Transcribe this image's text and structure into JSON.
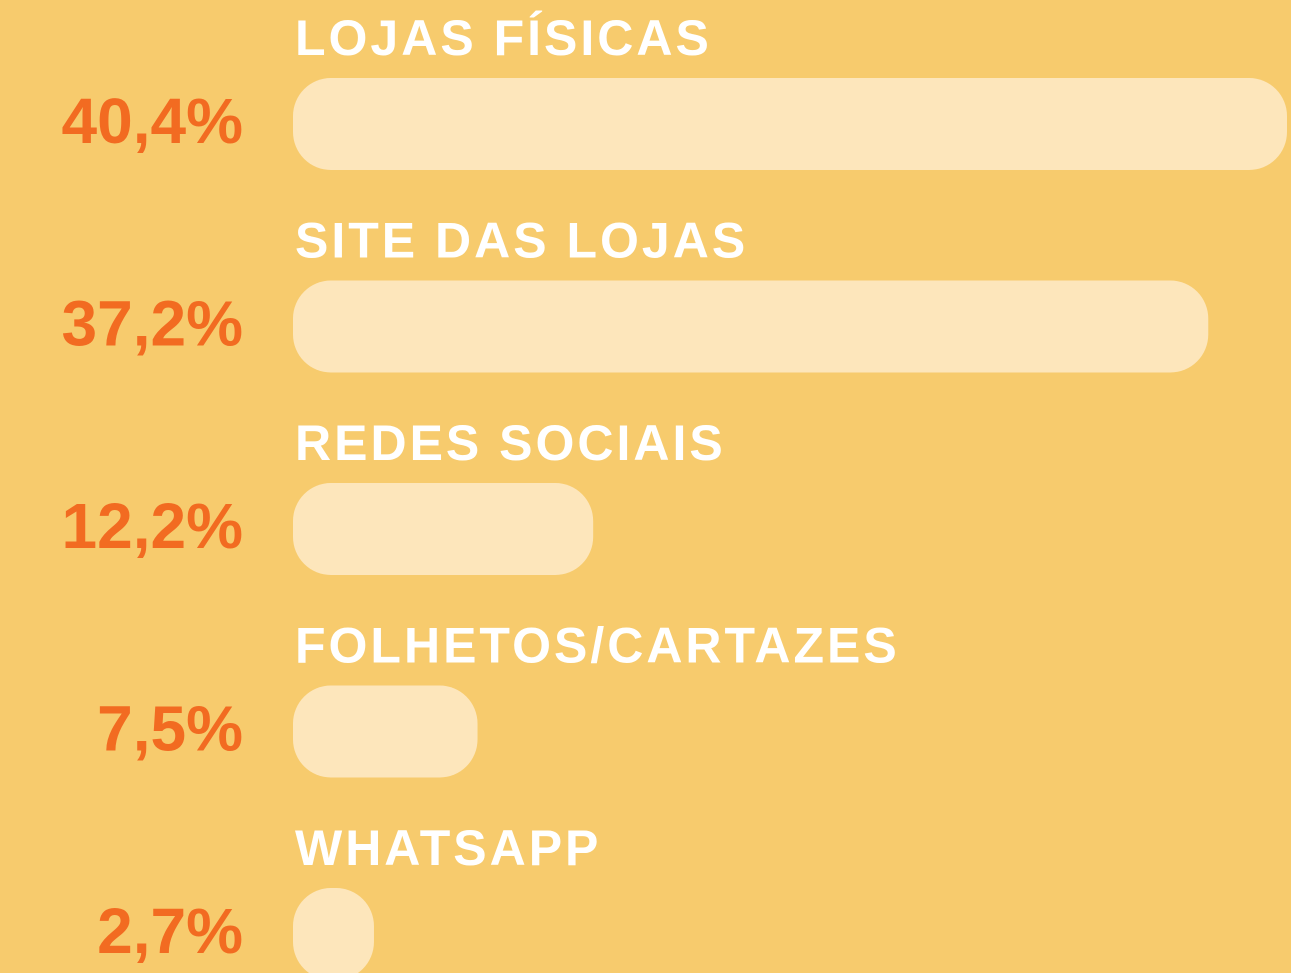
{
  "chart_data": {
    "type": "bar",
    "orientation": "horizontal",
    "categories": [
      "LOJAS FÍSICAS",
      "SITE DAS LOJAS",
      "REDES SOCIAIS",
      "FOLHETOS/CARTAZES",
      "WHATSAPP"
    ],
    "values": [
      40.4,
      37.2,
      12.2,
      7.5,
      2.7
    ],
    "value_labels": [
      "40,4%",
      "37,2%",
      "12,2%",
      "7,5%",
      "2,7%"
    ],
    "color": "#fde6bb"
  }
}
